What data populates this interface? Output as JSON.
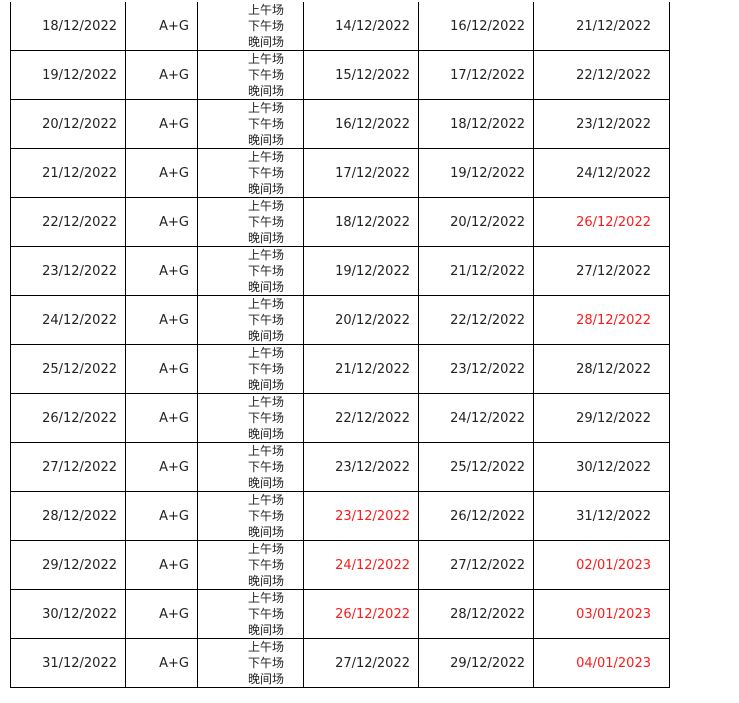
{
  "colors": {
    "text": "#222222",
    "highlight": "#ff1a1a",
    "border": "#000000"
  },
  "sessions": [
    "上午场",
    "下午场",
    "晚间场"
  ],
  "rows": [
    {
      "date": "18/12/2022",
      "group": "A+G",
      "d1": "14/12/2022",
      "d1_red": false,
      "d2": "16/12/2022",
      "d3": "21/12/2022",
      "d3_red": false
    },
    {
      "date": "19/12/2022",
      "group": "A+G",
      "d1": "15/12/2022",
      "d1_red": false,
      "d2": "17/12/2022",
      "d3": "22/12/2022",
      "d3_red": false
    },
    {
      "date": "20/12/2022",
      "group": "A+G",
      "d1": "16/12/2022",
      "d1_red": false,
      "d2": "18/12/2022",
      "d3": "23/12/2022",
      "d3_red": false
    },
    {
      "date": "21/12/2022",
      "group": "A+G",
      "d1": "17/12/2022",
      "d1_red": false,
      "d2": "19/12/2022",
      "d3": "24/12/2022",
      "d3_red": false
    },
    {
      "date": "22/12/2022",
      "group": "A+G",
      "d1": "18/12/2022",
      "d1_red": false,
      "d2": "20/12/2022",
      "d3": "26/12/2022",
      "d3_red": true
    },
    {
      "date": "23/12/2022",
      "group": "A+G",
      "d1": "19/12/2022",
      "d1_red": false,
      "d2": "21/12/2022",
      "d3": "27/12/2022",
      "d3_red": false
    },
    {
      "date": "24/12/2022",
      "group": "A+G",
      "d1": "20/12/2022",
      "d1_red": false,
      "d2": "22/12/2022",
      "d3": "28/12/2022",
      "d3_red": true
    },
    {
      "date": "25/12/2022",
      "group": "A+G",
      "d1": "21/12/2022",
      "d1_red": false,
      "d2": "23/12/2022",
      "d3": "28/12/2022",
      "d3_red": false
    },
    {
      "date": "26/12/2022",
      "group": "A+G",
      "d1": "22/12/2022",
      "d1_red": false,
      "d2": "24/12/2022",
      "d3": "29/12/2022",
      "d3_red": false
    },
    {
      "date": "27/12/2022",
      "group": "A+G",
      "d1": "23/12/2022",
      "d1_red": false,
      "d2": "25/12/2022",
      "d3": "30/12/2022",
      "d3_red": false
    },
    {
      "date": "28/12/2022",
      "group": "A+G",
      "d1": "23/12/2022",
      "d1_red": true,
      "d2": "26/12/2022",
      "d3": "31/12/2022",
      "d3_red": false
    },
    {
      "date": "29/12/2022",
      "group": "A+G",
      "d1": "24/12/2022",
      "d1_red": true,
      "d2": "27/12/2022",
      "d3": "02/01/2023",
      "d3_red": true
    },
    {
      "date": "30/12/2022",
      "group": "A+G",
      "d1": "26/12/2022",
      "d1_red": true,
      "d2": "28/12/2022",
      "d3": "03/01/2023",
      "d3_red": true
    },
    {
      "date": "31/12/2022",
      "group": "A+G",
      "d1": "27/12/2022",
      "d1_red": false,
      "d2": "29/12/2022",
      "d3": "04/01/2023",
      "d3_red": true
    }
  ]
}
